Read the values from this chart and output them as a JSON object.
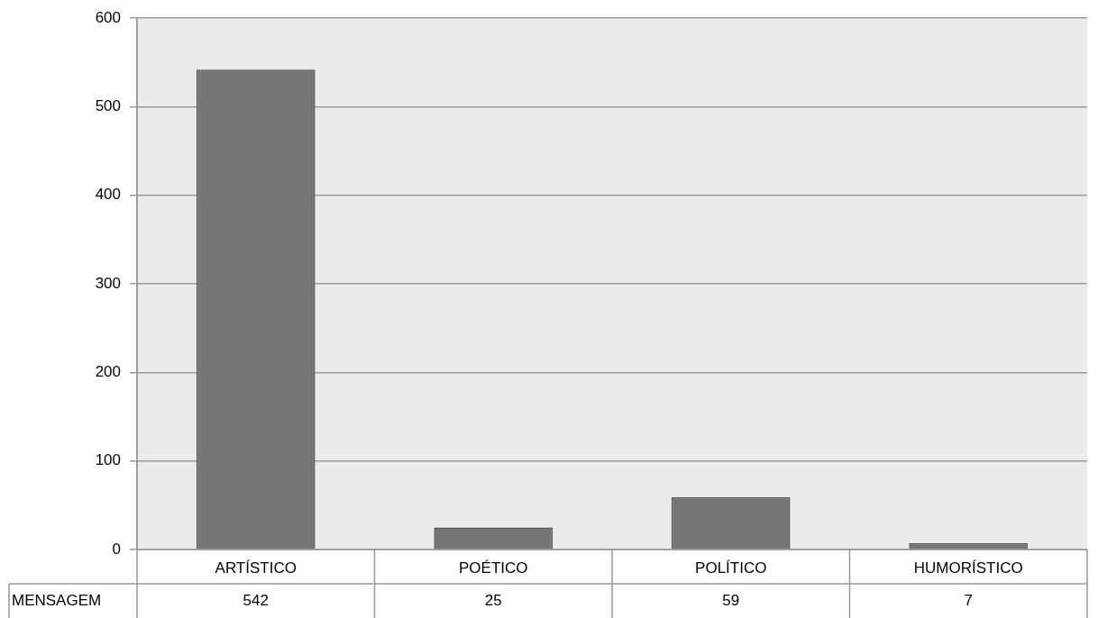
{
  "chart_data": {
    "type": "bar",
    "categories": [
      "ARTÍSTICO",
      "POÉTICO",
      "POLÍTICO",
      "HUMORÍSTICO"
    ],
    "series": [
      {
        "name": "MENSAGEM",
        "color": "#757575",
        "values": [
          542,
          25,
          59,
          7
        ]
      }
    ],
    "ylim": [
      0,
      600
    ],
    "yticks": [
      0,
      100,
      200,
      300,
      400,
      500,
      600
    ],
    "grid": "y",
    "legend": false,
    "data_labels": true
  }
}
